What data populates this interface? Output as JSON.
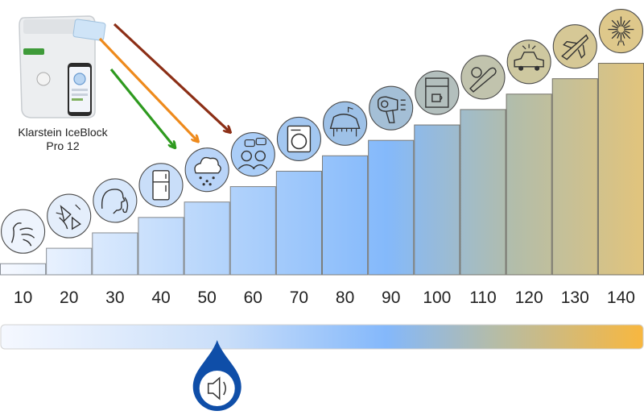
{
  "product": {
    "line1": "Klarstein IceBlock",
    "line2": "Pro 12"
  },
  "chart_data": {
    "type": "bar",
    "categories": [
      "10",
      "20",
      "30",
      "40",
      "50",
      "60",
      "70",
      "80",
      "90",
      "100",
      "110",
      "120",
      "130",
      "140"
    ],
    "values": [
      10,
      20,
      30,
      40,
      50,
      60,
      70,
      80,
      90,
      100,
      110,
      120,
      130,
      140
    ],
    "ylim": [
      0,
      145
    ],
    "icons": [
      "breath-icon",
      "leaves-icon",
      "whisper-icon",
      "fridge-icon",
      "rain-icon",
      "conversation-icon",
      "washing-machine-icon",
      "piano-icon",
      "hair-dryer-icon",
      "coffee-machine-icon",
      "chainsaw-icon",
      "car-icon",
      "jet-icon",
      "fireworks-icon"
    ],
    "gradient_colors": [
      "#f4f8ff",
      "#83b8fb",
      "#b9bba0",
      "#f6b944"
    ],
    "marker_value": 55,
    "marker_icon": "speaker-icon",
    "arrows": [
      {
        "color": "#2e9a1f",
        "target": 45
      },
      {
        "color": "#ee8a1c",
        "target": 50
      },
      {
        "color": "#8c2f16",
        "target": 57
      }
    ]
  }
}
